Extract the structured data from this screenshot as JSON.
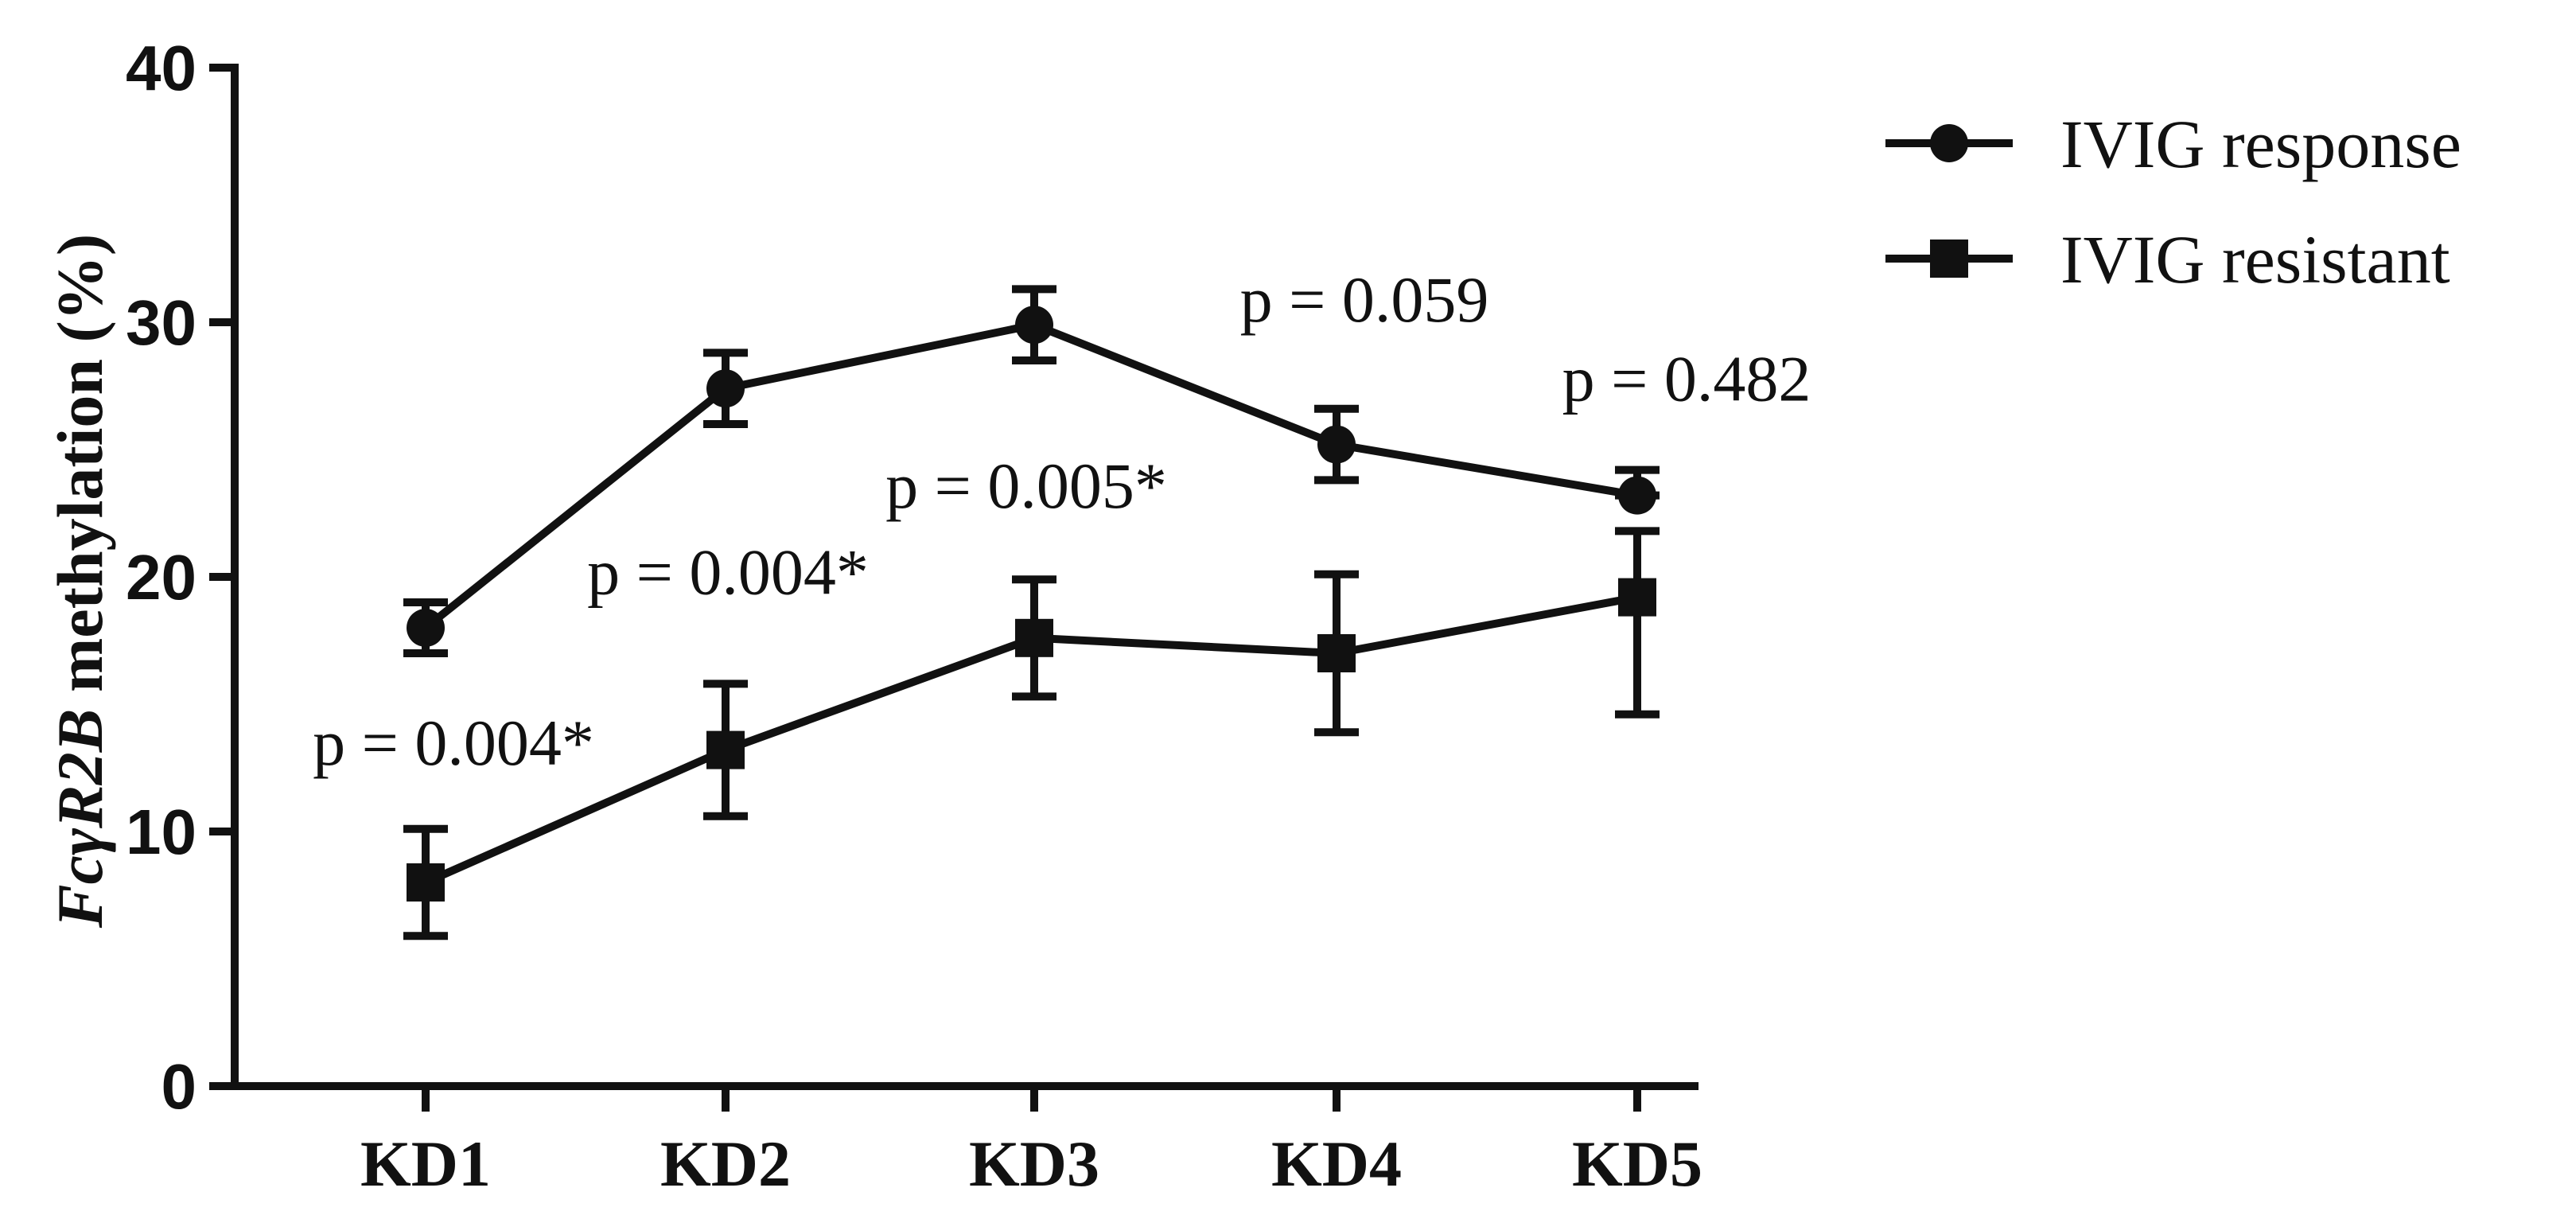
{
  "chart_data": {
    "type": "line",
    "categories": [
      "KD1",
      "KD2",
      "KD3",
      "KD4",
      "KD5"
    ],
    "ylabel_parts": [
      "FcγR2B",
      " methylation (%)"
    ],
    "ylim": [
      0,
      40
    ],
    "yticks": [
      "0",
      "10",
      "20",
      "30",
      "40"
    ],
    "grid": false,
    "legend_position": "top-right",
    "series": [
      {
        "name": "IVIG response",
        "marker": "circle",
        "values": [
          18.0,
          27.4,
          29.9,
          25.2,
          23.2
        ],
        "err_low": [
          1.0,
          1.4,
          1.4,
          1.4,
          0.0
        ],
        "err_high": [
          1.0,
          1.4,
          1.4,
          1.4,
          1.0
        ]
      },
      {
        "name": "IVIG resistant",
        "marker": "square",
        "values": [
          8.0,
          13.2,
          17.6,
          17.0,
          19.2
        ],
        "err_low": [
          2.1,
          2.6,
          2.3,
          3.1,
          4.6
        ],
        "err_high": [
          2.1,
          2.6,
          2.3,
          3.1,
          2.6
        ]
      }
    ],
    "annotations": [
      {
        "text": "p = 0.004*",
        "category": 0,
        "y": 13.5
      },
      {
        "text": "p = 0.004*",
        "category": 1,
        "y": 20.2
      },
      {
        "text": "p = 0.005*",
        "category": 2,
        "y": 23.6
      },
      {
        "text": "p = 0.059",
        "category": 3,
        "y": 30.9
      },
      {
        "text": "p = 0.482",
        "category": 4,
        "y": 27.8
      }
    ]
  }
}
